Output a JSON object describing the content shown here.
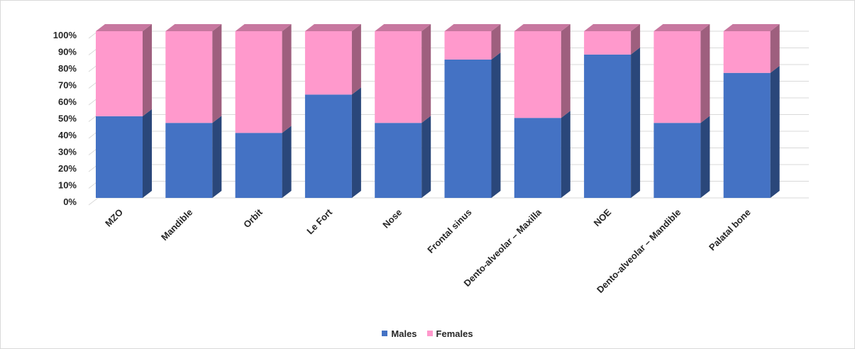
{
  "chart_data": {
    "type": "bar",
    "stacked": true,
    "percent_stacked": true,
    "style": "3d",
    "title": "",
    "xlabel": "",
    "ylabel": "",
    "ylim": [
      0,
      100
    ],
    "y_ticks": [
      "0%",
      "10%",
      "20%",
      "30%",
      "40%",
      "50%",
      "60%",
      "70%",
      "80%",
      "90%",
      "100%"
    ],
    "grid": true,
    "legend_position": "bottom",
    "categories": [
      "MZO",
      "Mandible",
      "Orbit",
      "Le Fort",
      "Nose",
      "Frontal sinus",
      "Dento-alveolar – Maxilla",
      "NOE",
      "Dento-alveolar – Mandible",
      "Palatal bone"
    ],
    "series": [
      {
        "name": "Males",
        "color": "#4472c4",
        "values": [
          49,
          45,
          39,
          62,
          45,
          83,
          48,
          86,
          45,
          75
        ]
      },
      {
        "name": "Females",
        "color": "#ff99cc",
        "values": [
          51,
          55,
          61,
          38,
          55,
          17,
          52,
          14,
          55,
          25
        ]
      }
    ]
  }
}
